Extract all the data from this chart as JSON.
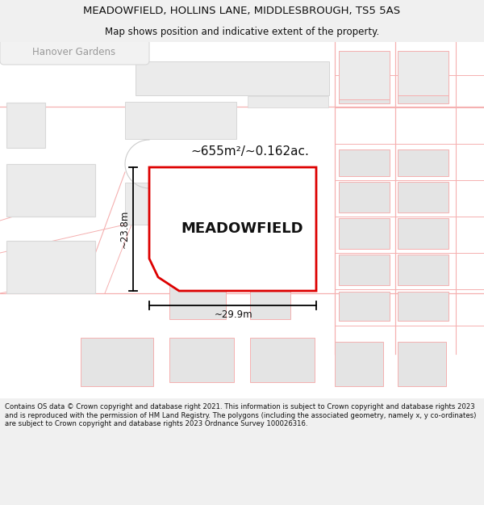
{
  "title_line1": "MEADOWFIELD, HOLLINS LANE, MIDDLESBROUGH, TS5 5AS",
  "title_line2": "Map shows position and indicative extent of the property.",
  "property_label": "MEADOWFIELD",
  "area_label": "~655m²/~0.162ac.",
  "dim_width": "~29.9m",
  "dim_height": "~23.8m",
  "footer_text": "Contains OS data © Crown copyright and database right 2021. This information is subject to Crown copyright and database rights 2023 and is reproduced with the permission of HM Land Registry. The polygons (including the associated geometry, namely x, y co-ordinates) are subject to Crown copyright and database rights 2023 Ordnance Survey 100026316.",
  "bg_color": "#f0f0f0",
  "map_bg": "#ffffff",
  "plot_edge": "#dd0000",
  "road_color": "#f5b0b0",
  "bldg_fill": "#e4e4e4",
  "bldg_edge": "#f5b0b0"
}
